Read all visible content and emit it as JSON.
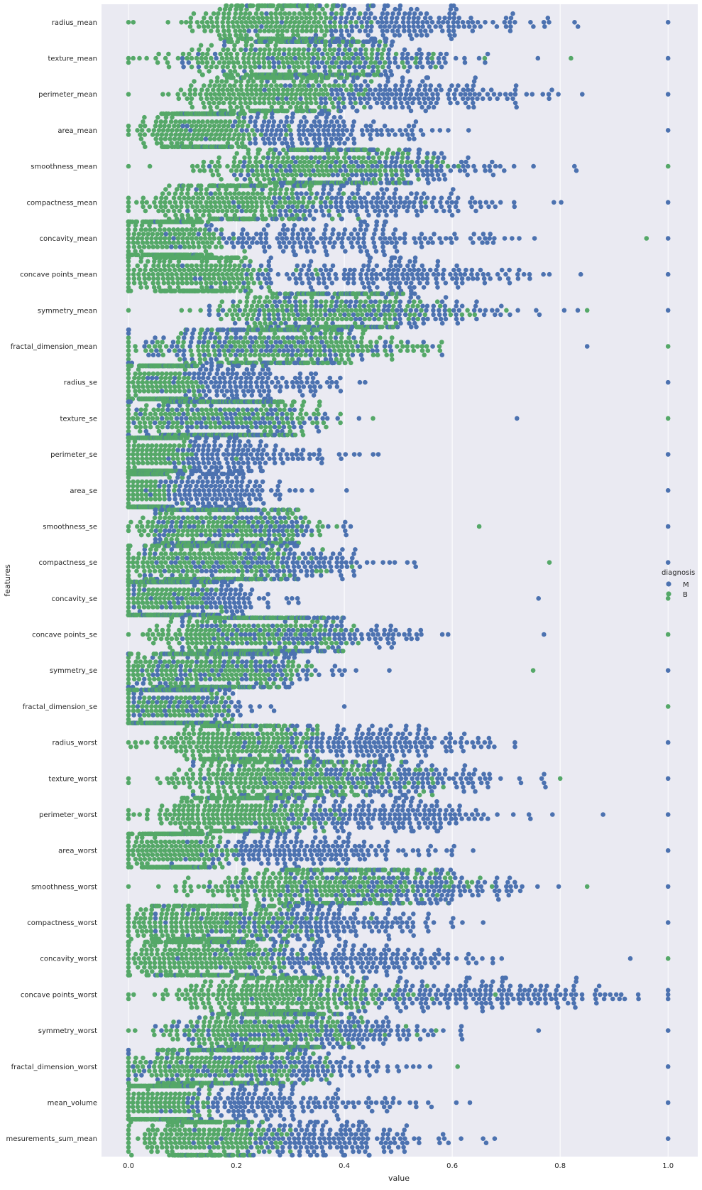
{
  "chart_data": {
    "type": "scatter",
    "subtype": "swarm",
    "orientation": "horizontal",
    "xlabel": "value",
    "ylabel": "features",
    "xlim": [
      -0.05,
      1.055
    ],
    "xticks": [
      0.0,
      0.2,
      0.4,
      0.6,
      0.8,
      1.0
    ],
    "xtick_labels": [
      "0.0",
      "0.2",
      "0.4",
      "0.6",
      "0.8",
      "1.0"
    ],
    "grid": true,
    "legend": {
      "title": "diagnosis",
      "placement": "center-right",
      "entries": [
        {
          "label": "M",
          "color": "#4c72b0"
        },
        {
          "label": "B",
          "color": "#55a868"
        }
      ]
    },
    "colors": {
      "M": "#4c72b0",
      "B": "#55a868",
      "background": "#eaeaf2",
      "grid": "#ffffff"
    },
    "features": [
      {
        "name": "radius_mean",
        "B": {
          "center": 0.27,
          "spread": 0.075,
          "min": 0.0,
          "max": 0.45
        },
        "M": {
          "center": 0.5,
          "spread": 0.12,
          "min": 0.22,
          "max": 1.0
        }
      },
      {
        "name": "texture_mean",
        "B": {
          "center": 0.3,
          "spread": 0.11,
          "min": 0.0,
          "max": 0.82
        },
        "M": {
          "center": 0.38,
          "spread": 0.12,
          "min": 0.1,
          "max": 1.0
        }
      },
      {
        "name": "perimeter_mean",
        "B": {
          "center": 0.26,
          "spread": 0.075,
          "min": 0.0,
          "max": 0.45
        },
        "M": {
          "center": 0.5,
          "spread": 0.13,
          "min": 0.21,
          "max": 1.0
        }
      },
      {
        "name": "area_mean",
        "B": {
          "center": 0.13,
          "spread": 0.05,
          "min": 0.0,
          "max": 0.3
        },
        "M": {
          "center": 0.33,
          "spread": 0.12,
          "min": 0.1,
          "max": 1.0
        }
      },
      {
        "name": "smoothness_mean",
        "B": {
          "center": 0.34,
          "spread": 0.1,
          "min": 0.0,
          "max": 1.0
        },
        "M": {
          "center": 0.45,
          "spread": 0.12,
          "min": 0.15,
          "max": 0.83
        }
      },
      {
        "name": "compactness_mean",
        "B": {
          "center": 0.2,
          "spread": 0.08,
          "min": 0.0,
          "max": 0.55
        },
        "M": {
          "center": 0.42,
          "spread": 0.14,
          "min": 0.1,
          "max": 1.0
        }
      },
      {
        "name": "concavity_mean",
        "B": {
          "center": 0.07,
          "spread": 0.05,
          "min": 0.0,
          "max": 0.96
        },
        "M": {
          "center": 0.38,
          "spread": 0.15,
          "min": 0.05,
          "max": 1.0
        }
      },
      {
        "name": "concave points_mean",
        "B": {
          "center": 0.12,
          "spread": 0.06,
          "min": 0.0,
          "max": 0.35
        },
        "M": {
          "center": 0.48,
          "spread": 0.15,
          "min": 0.1,
          "max": 1.0
        }
      },
      {
        "name": "symmetry_mean",
        "B": {
          "center": 0.37,
          "spread": 0.1,
          "min": 0.0,
          "max": 0.85
        },
        "M": {
          "center": 0.45,
          "spread": 0.12,
          "min": 0.15,
          "max": 1.0
        }
      },
      {
        "name": "fractal_dimension_mean",
        "B": {
          "center": 0.27,
          "spread": 0.11,
          "min": 0.0,
          "max": 1.0
        },
        "M": {
          "center": 0.25,
          "spread": 0.12,
          "min": 0.0,
          "max": 0.85
        }
      },
      {
        "name": "radius_se",
        "B": {
          "center": 0.06,
          "spread": 0.03,
          "min": 0.0,
          "max": 0.25
        },
        "M": {
          "center": 0.2,
          "spread": 0.1,
          "min": 0.02,
          "max": 1.0
        }
      },
      {
        "name": "texture_se",
        "B": {
          "center": 0.18,
          "spread": 0.09,
          "min": 0.0,
          "max": 1.0
        },
        "M": {
          "center": 0.17,
          "spread": 0.09,
          "min": 0.0,
          "max": 0.72
        }
      },
      {
        "name": "perimeter_se",
        "B": {
          "center": 0.05,
          "spread": 0.03,
          "min": 0.0,
          "max": 0.2
        },
        "M": {
          "center": 0.18,
          "spread": 0.1,
          "min": 0.02,
          "max": 1.0
        }
      },
      {
        "name": "area_se",
        "B": {
          "center": 0.03,
          "spread": 0.02,
          "min": 0.0,
          "max": 0.1
        },
        "M": {
          "center": 0.14,
          "spread": 0.08,
          "min": 0.02,
          "max": 1.0
        }
      },
      {
        "name": "smoothness_se",
        "B": {
          "center": 0.18,
          "spread": 0.08,
          "min": 0.0,
          "max": 0.65
        },
        "M": {
          "center": 0.18,
          "spread": 0.09,
          "min": 0.05,
          "max": 1.0
        }
      },
      {
        "name": "compactness_se",
        "B": {
          "center": 0.15,
          "spread": 0.08,
          "min": 0.0,
          "max": 0.78
        },
        "M": {
          "center": 0.26,
          "spread": 0.12,
          "min": 0.03,
          "max": 1.0
        }
      },
      {
        "name": "concavity_se",
        "B": {
          "center": 0.06,
          "spread": 0.04,
          "min": 0.0,
          "max": 1.0
        },
        "M": {
          "center": 0.12,
          "spread": 0.07,
          "min": 0.01,
          "max": 0.76
        }
      },
      {
        "name": "concave points_se",
        "B": {
          "center": 0.22,
          "spread": 0.08,
          "min": 0.0,
          "max": 1.0
        },
        "M": {
          "center": 0.33,
          "spread": 0.11,
          "min": 0.1,
          "max": 0.77
        }
      },
      {
        "name": "symmetry_se",
        "B": {
          "center": 0.15,
          "spread": 0.08,
          "min": 0.0,
          "max": 0.75
        },
        "M": {
          "center": 0.18,
          "spread": 0.1,
          "min": 0.0,
          "max": 1.0
        }
      },
      {
        "name": "fractal_dimension_se",
        "B": {
          "center": 0.08,
          "spread": 0.05,
          "min": 0.0,
          "max": 1.0
        },
        "M": {
          "center": 0.1,
          "spread": 0.06,
          "min": 0.01,
          "max": 0.4
        }
      },
      {
        "name": "radius_worst",
        "B": {
          "center": 0.2,
          "spread": 0.07,
          "min": 0.0,
          "max": 0.35
        },
        "M": {
          "center": 0.45,
          "spread": 0.13,
          "min": 0.17,
          "max": 1.0
        }
      },
      {
        "name": "texture_worst",
        "B": {
          "center": 0.3,
          "spread": 0.11,
          "min": 0.0,
          "max": 0.8
        },
        "M": {
          "center": 0.45,
          "spread": 0.13,
          "min": 0.12,
          "max": 1.0
        }
      },
      {
        "name": "perimeter_worst",
        "B": {
          "center": 0.2,
          "spread": 0.07,
          "min": 0.0,
          "max": 0.4
        },
        "M": {
          "center": 0.45,
          "spread": 0.13,
          "min": 0.15,
          "max": 1.0
        }
      },
      {
        "name": "area_worst",
        "B": {
          "center": 0.08,
          "spread": 0.04,
          "min": 0.0,
          "max": 0.2
        },
        "M": {
          "center": 0.3,
          "spread": 0.12,
          "min": 0.08,
          "max": 1.0
        }
      },
      {
        "name": "smoothness_worst",
        "B": {
          "center": 0.36,
          "spread": 0.12,
          "min": 0.0,
          "max": 0.85
        },
        "M": {
          "center": 0.5,
          "spread": 0.12,
          "min": 0.15,
          "max": 1.0
        }
      },
      {
        "name": "compactness_worst",
        "B": {
          "center": 0.15,
          "spread": 0.08,
          "min": 0.0,
          "max": 0.45
        },
        "M": {
          "center": 0.35,
          "spread": 0.13,
          "min": 0.05,
          "max": 1.0
        }
      },
      {
        "name": "concavity_worst",
        "B": {
          "center": 0.12,
          "spread": 0.08,
          "min": 0.0,
          "max": 1.0
        },
        "M": {
          "center": 0.4,
          "spread": 0.13,
          "min": 0.05,
          "max": 0.93
        }
      },
      {
        "name": "concave points_worst",
        "B": {
          "center": 0.28,
          "spread": 0.1,
          "min": 0.0,
          "max": 0.68
        },
        "M": {
          "center": 0.65,
          "spread": 0.14,
          "min": 0.2,
          "max": 1.0
        }
      },
      {
        "name": "symmetry_worst",
        "B": {
          "center": 0.25,
          "spread": 0.08,
          "min": 0.0,
          "max": 0.57
        },
        "M": {
          "center": 0.33,
          "spread": 0.12,
          "min": 0.05,
          "max": 1.0
        }
      },
      {
        "name": "fractal_dimension_worst",
        "B": {
          "center": 0.17,
          "spread": 0.08,
          "min": 0.0,
          "max": 0.61
        },
        "M": {
          "center": 0.25,
          "spread": 0.12,
          "min": 0.0,
          "max": 1.0
        }
      },
      {
        "name": "mean_volume",
        "B": {
          "center": 0.06,
          "spread": 0.035,
          "min": 0.0,
          "max": 0.15
        },
        "M": {
          "center": 0.25,
          "spread": 0.12,
          "min": 0.05,
          "max": 1.0
        }
      },
      {
        "name": "mesurements_sum_mean",
        "B": {
          "center": 0.14,
          "spread": 0.06,
          "min": 0.0,
          "max": 0.3
        },
        "M": {
          "center": 0.35,
          "spread": 0.12,
          "min": 0.1,
          "max": 1.0
        }
      }
    ]
  }
}
